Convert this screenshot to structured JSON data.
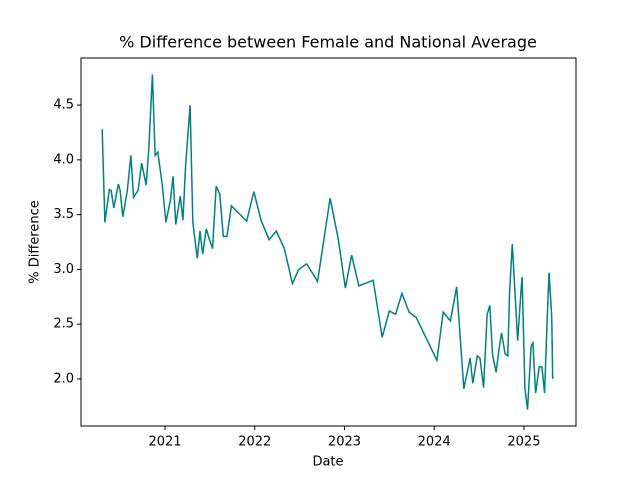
{
  "chart_data": {
    "type": "line",
    "title": "% Difference between Female and National Average",
    "x_label": "Date",
    "y_label": "% Difference",
    "x": [
      2020.3,
      2020.33,
      2020.38,
      2020.4,
      2020.43,
      2020.48,
      2020.5,
      2020.53,
      2020.58,
      2020.62,
      2020.65,
      2020.7,
      2020.74,
      2020.79,
      2020.82,
      2020.86,
      2020.89,
      2020.92,
      2020.97,
      2021.01,
      2021.06,
      2021.09,
      2021.12,
      2021.17,
      2021.2,
      2021.23,
      2021.28,
      2021.31,
      2021.36,
      2021.39,
      2021.42,
      2021.46,
      2021.5,
      2021.53,
      2021.57,
      2021.61,
      2021.65,
      2021.69,
      2021.74,
      2021.91,
      2021.99,
      2022.07,
      2022.16,
      2022.24,
      2022.33,
      2022.42,
      2022.49,
      2022.58,
      2022.7,
      2022.75,
      2022.84,
      2022.93,
      2023.01,
      2023.08,
      2023.16,
      2023.32,
      2023.42,
      2023.5,
      2023.57,
      2023.64,
      2023.72,
      2023.8,
      2024.03,
      2024.1,
      2024.18,
      2024.25,
      2024.33,
      2024.4,
      2024.43,
      2024.48,
      2024.51,
      2024.55,
      2024.59,
      2024.62,
      2024.65,
      2024.69,
      2024.72,
      2024.75,
      2024.79,
      2024.82,
      2024.84,
      2024.87,
      2024.93,
      2024.97,
      2024.98,
      2025.01,
      2025.04,
      2025.08,
      2025.1,
      2025.13,
      2025.17,
      2025.2,
      2025.23,
      2025.26,
      2025.28,
      2025.31,
      2025.32
    ],
    "series": [
      {
        "name": "% Difference",
        "color": "#008080",
        "values": [
          4.28,
          3.43,
          3.73,
          3.72,
          3.56,
          3.78,
          3.72,
          3.48,
          3.72,
          4.04,
          3.66,
          3.72,
          3.97,
          3.77,
          4.11,
          4.78,
          4.04,
          4.07,
          3.77,
          3.43,
          3.63,
          3.85,
          3.41,
          3.67,
          3.45,
          3.95,
          4.5,
          3.43,
          3.1,
          3.35,
          3.14,
          3.37,
          3.26,
          3.19,
          3.76,
          3.69,
          3.3,
          3.3,
          3.58,
          3.44,
          3.71,
          3.45,
          3.27,
          3.35,
          3.19,
          2.87,
          3.0,
          3.05,
          2.89,
          3.16,
          3.65,
          3.28,
          2.83,
          3.13,
          2.85,
          2.9,
          2.38,
          2.62,
          2.59,
          2.78,
          2.61,
          2.56,
          2.17,
          2.61,
          2.53,
          2.84,
          1.91,
          2.19,
          1.96,
          2.21,
          2.19,
          1.92,
          2.59,
          2.67,
          2.22,
          2.06,
          2.26,
          2.42,
          2.23,
          2.21,
          2.79,
          3.23,
          2.35,
          2.84,
          2.93,
          1.92,
          1.72,
          2.3,
          2.33,
          1.87,
          2.11,
          2.11,
          1.87,
          2.57,
          2.97,
          2.56,
          2.0
        ]
      }
    ],
    "xlim": [
      2020.064,
      2025.58
    ],
    "xticks": [
      2021,
      2022,
      2023,
      2024,
      2025
    ],
    "ylim": [
      1.57,
      4.93
    ],
    "yticks": [
      {
        "value": 2.0,
        "label": "2.0"
      },
      {
        "value": 2.5,
        "label": "2.5"
      },
      {
        "value": 3.0,
        "label": "3.0"
      },
      {
        "value": 3.5,
        "label": "3.5"
      },
      {
        "value": 4.0,
        "label": "4.0"
      },
      {
        "value": 4.5,
        "label": "4.5"
      }
    ],
    "grid": false
  }
}
